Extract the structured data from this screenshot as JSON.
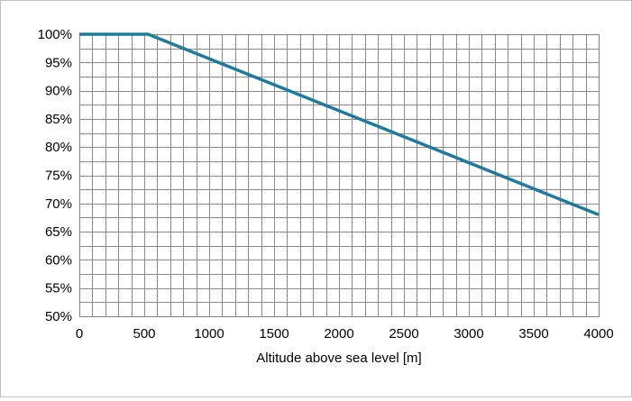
{
  "chart_data": {
    "type": "line",
    "title": "",
    "xlabel": "Altitude above sea level [m]",
    "ylabel": "",
    "xlim": [
      0,
      4000
    ],
    "ylim": [
      50,
      100
    ],
    "x_ticks": [
      0,
      500,
      1000,
      1500,
      2000,
      2500,
      3000,
      3500,
      4000
    ],
    "x_tick_labels": [
      "0",
      "500",
      "1000",
      "1500",
      "2000",
      "2500",
      "3000",
      "3500",
      "4000"
    ],
    "y_ticks": [
      50,
      55,
      60,
      65,
      70,
      75,
      80,
      85,
      90,
      95,
      100
    ],
    "y_tick_labels": [
      "50%",
      "55%",
      "60%",
      "65%",
      "70%",
      "75%",
      "80%",
      "85%",
      "90%",
      "95%",
      "100%"
    ],
    "grid": true,
    "minor_grid": true,
    "legend": "none",
    "series": [
      {
        "color": "#1f7a9c",
        "points": [
          {
            "x": 0,
            "y": 100
          },
          {
            "x": 530,
            "y": 100
          },
          {
            "x": 4000,
            "y": 68
          }
        ]
      }
    ]
  }
}
